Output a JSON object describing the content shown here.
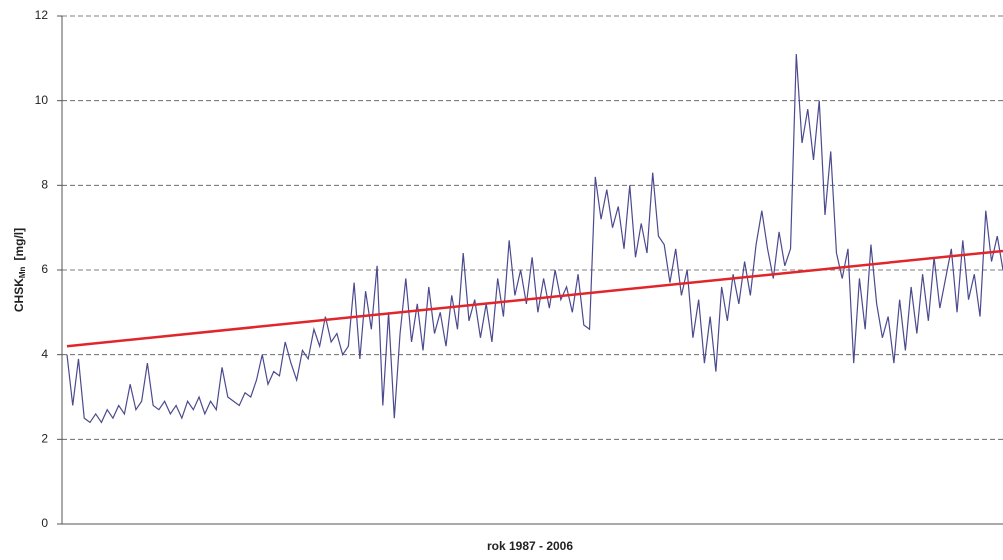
{
  "chart_data": {
    "type": "line",
    "x_label": "rok 1987 - 2006",
    "y_label": {
      "text": "CHSK",
      "subscript": "Mn",
      "unit": "[mg/l]"
    },
    "ylim": [
      0,
      12
    ],
    "yticks": [
      0,
      2,
      4,
      6,
      8,
      10,
      12
    ],
    "grid": true,
    "series": [
      {
        "color": "#4b4a8f",
        "values": [
          4.0,
          2.8,
          3.9,
          2.5,
          2.4,
          2.6,
          2.4,
          2.7,
          2.5,
          2.8,
          2.6,
          3.3,
          2.7,
          2.9,
          3.8,
          2.8,
          2.7,
          2.9,
          2.6,
          2.8,
          2.5,
          2.9,
          2.7,
          3.0,
          2.6,
          2.9,
          2.7,
          3.7,
          3.0,
          2.9,
          2.8,
          3.1,
          3.0,
          3.4,
          4.0,
          3.3,
          3.6,
          3.5,
          4.3,
          3.8,
          3.4,
          4.1,
          3.9,
          4.6,
          4.2,
          4.9,
          4.3,
          4.5,
          4.0,
          4.2,
          5.7,
          3.9,
          5.5,
          4.6,
          6.1,
          2.8,
          5.0,
          2.5,
          4.5,
          5.8,
          4.3,
          5.2,
          4.1,
          5.6,
          4.5,
          5.0,
          4.2,
          5.4,
          4.6,
          6.4,
          4.8,
          5.3,
          4.4,
          5.2,
          4.3,
          5.8,
          4.9,
          6.7,
          5.4,
          6.0,
          5.2,
          6.3,
          5.0,
          5.8,
          5.1,
          6.0,
          5.3,
          5.6,
          5.0,
          5.9,
          4.7,
          4.6,
          8.2,
          7.2,
          7.9,
          7.0,
          7.5,
          6.5,
          8.0,
          6.3,
          7.1,
          6.4,
          8.3,
          6.8,
          6.6,
          5.7,
          6.5,
          5.4,
          6.0,
          4.4,
          5.3,
          3.8,
          4.9,
          3.6,
          5.6,
          4.8,
          5.9,
          5.2,
          6.2,
          5.4,
          6.6,
          7.4,
          6.5,
          5.8,
          6.9,
          6.1,
          6.5,
          11.1,
          9.0,
          9.8,
          8.6,
          10.0,
          7.3,
          8.8,
          6.4,
          5.8,
          6.5,
          3.8,
          5.8,
          4.6,
          6.6,
          5.2,
          4.4,
          4.9,
          3.8,
          5.3,
          4.1,
          5.6,
          4.5,
          5.9,
          4.8,
          6.3,
          5.1,
          5.8,
          6.5,
          5.0,
          6.7,
          5.3,
          5.9,
          4.9,
          7.4,
          6.2,
          6.8,
          6.0
        ]
      }
    ],
    "trend": {
      "color": "#e0262b",
      "values": [
        4.2,
        6.45
      ]
    }
  }
}
